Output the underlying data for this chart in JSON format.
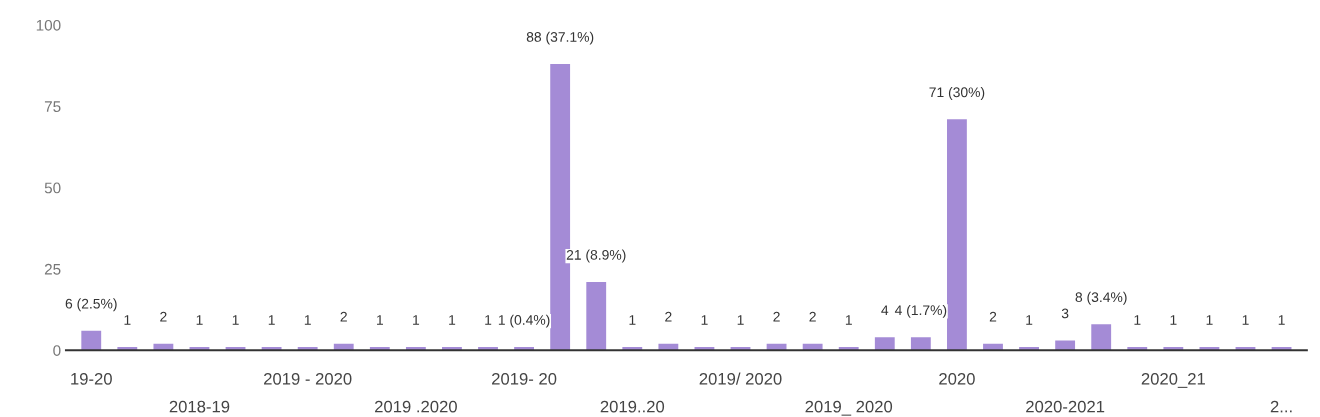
{
  "chart_data": {
    "type": "bar",
    "categories": [
      "19-20",
      null,
      null,
      "2018-19",
      null,
      null,
      "2019 - 2020",
      null,
      null,
      "2019 .2020",
      null,
      null,
      "2019- 20",
      null,
      null,
      "2019..20",
      null,
      null,
      "2019/ 2020",
      null,
      null,
      "2019_ 2020",
      null,
      null,
      "2020",
      null,
      null,
      "2020-2021",
      null,
      null,
      "2020_21",
      null,
      null,
      "2..."
    ],
    "values": [
      6,
      1,
      2,
      1,
      1,
      1,
      1,
      2,
      1,
      1,
      1,
      1,
      1,
      88,
      21,
      1,
      2,
      1,
      1,
      2,
      2,
      1,
      4,
      4,
      71,
      2,
      1,
      3,
      8,
      1,
      1,
      1,
      1,
      1
    ],
    "value_labels": [
      "6 (2.5%)",
      "1",
      "2",
      "1",
      "1",
      "1",
      "1",
      "2",
      "1",
      "1",
      "1",
      "1",
      "1 (0.4%)",
      "88 (37.1%)",
      "21 (8.9%)",
      "1",
      "2",
      "1",
      "1",
      "2",
      "2",
      "1",
      "4",
      "4 (1.7%)",
      "71 (30%)",
      "2",
      "1",
      "3",
      "8 (3.4%)",
      "1",
      "1",
      "1",
      "1",
      "1"
    ],
    "color": "#a48bd6",
    "ylim": [
      0,
      100
    ],
    "yticks": [
      0,
      25,
      50,
      75,
      100
    ],
    "grid": false,
    "legend": false
  }
}
